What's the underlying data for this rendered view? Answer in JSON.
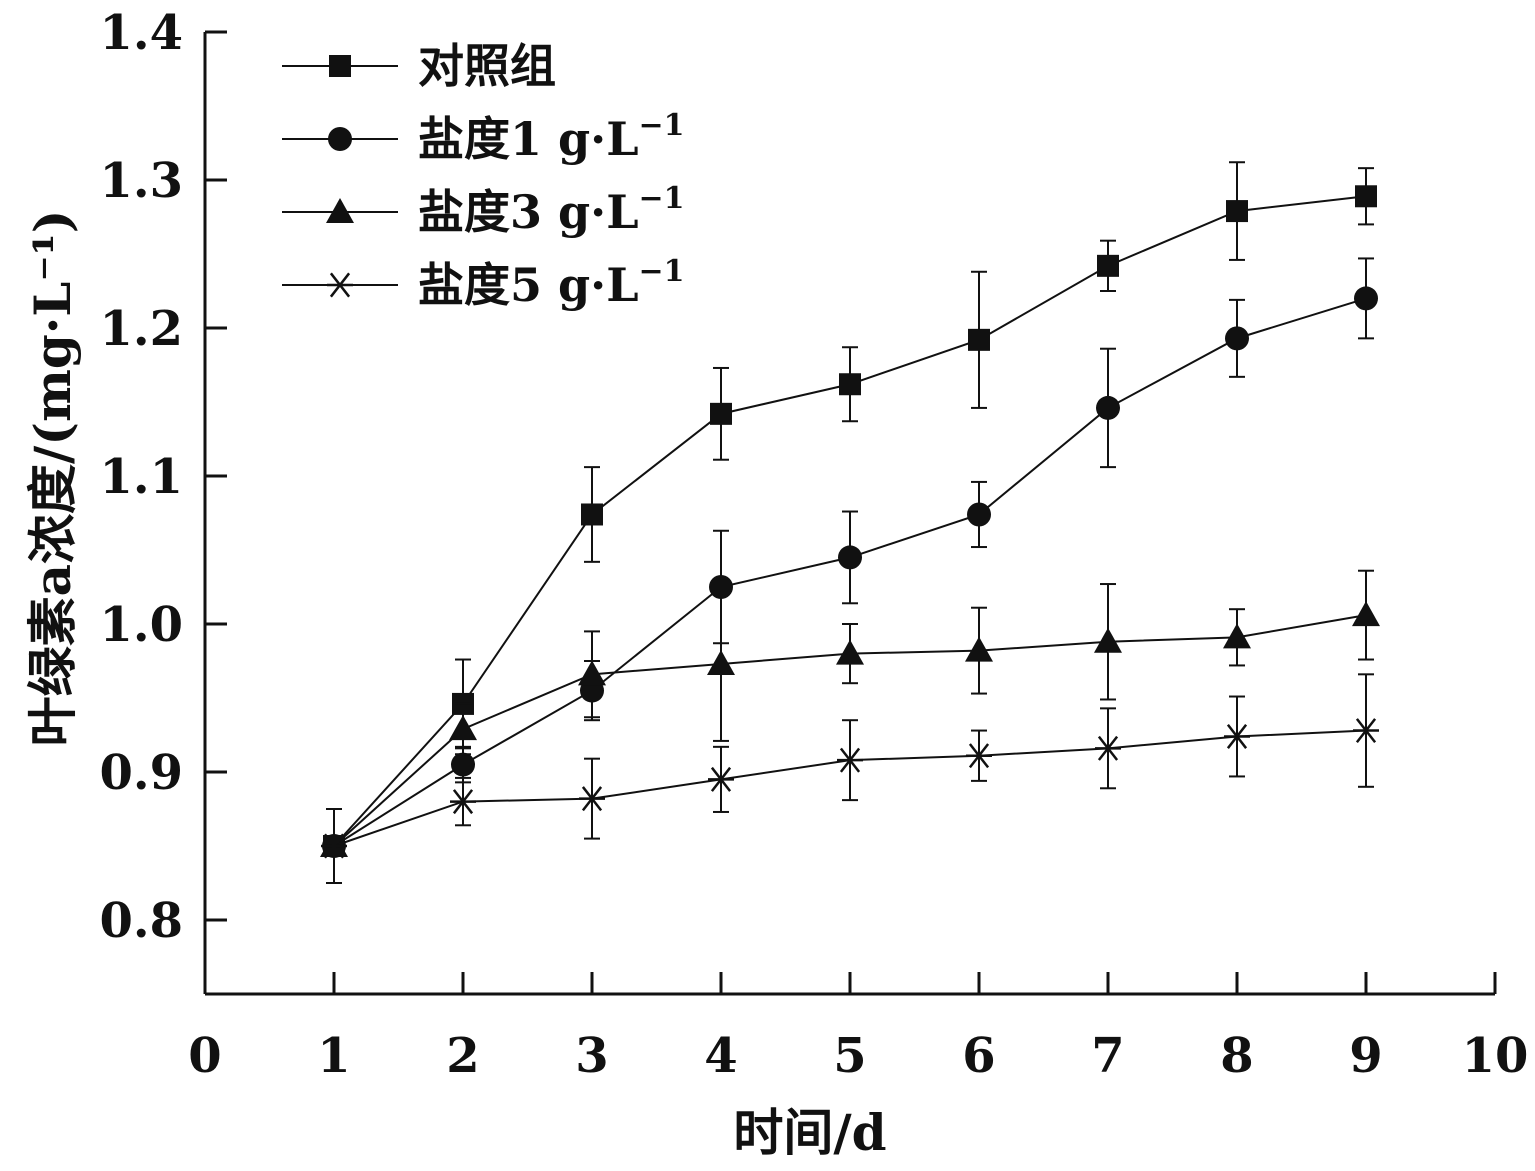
{
  "chart_data": {
    "type": "line",
    "xlabel": "时间/d",
    "ylabel": "叶绿素a浓度/(mg·L⁻¹)",
    "xlim": [
      0,
      10
    ],
    "ylim": [
      0.75,
      1.4
    ],
    "x_ticks": [
      0,
      1,
      2,
      3,
      4,
      5,
      6,
      7,
      8,
      9,
      10
    ],
    "y_ticks": [
      "0.8",
      "0.9",
      "1.0",
      "1.1",
      "1.2",
      "1.3",
      "1.4"
    ],
    "grid": false,
    "legend": "top-left",
    "x": [
      1,
      2,
      3,
      4,
      5,
      6,
      7,
      8,
      9
    ],
    "series": [
      {
        "name": "对照组",
        "name_base": "对照组",
        "name_sup": "",
        "marker": "square",
        "values": [
          0.85,
          0.946,
          1.074,
          1.142,
          1.162,
          1.192,
          1.242,
          1.279,
          1.289
        ],
        "errors": [
          0.025,
          0.03,
          0.032,
          0.031,
          0.025,
          0.046,
          0.017,
          0.033,
          0.019
        ]
      },
      {
        "name": "盐度1 g·L−1",
        "name_base": "盐度1 g·L",
        "name_sup": "−1",
        "marker": "circle",
        "values": [
          0.85,
          0.905,
          0.955,
          1.025,
          1.045,
          1.074,
          1.146,
          1.193,
          1.22
        ],
        "errors": [
          0.025,
          0.012,
          0.02,
          0.038,
          0.031,
          0.022,
          0.04,
          0.026,
          0.027
        ]
      },
      {
        "name": "盐度3 g·L−1",
        "name_base": "盐度3 g·L",
        "name_sup": "−1",
        "marker": "triangle",
        "values": [
          0.85,
          0.929,
          0.966,
          0.973,
          0.98,
          0.982,
          0.988,
          0.991,
          1.006
        ],
        "errors": [
          0.025,
          0.017,
          0.029,
          0.052,
          0.02,
          0.029,
          0.039,
          0.019,
          0.03
        ]
      },
      {
        "name": "盐度5 g·L−1",
        "name_base": "盐度5 g·L",
        "name_sup": "−1",
        "marker": "star",
        "values": [
          0.85,
          0.88,
          0.882,
          0.895,
          0.908,
          0.911,
          0.916,
          0.924,
          0.928
        ],
        "errors": [
          0.025,
          0.016,
          0.027,
          0.022,
          0.027,
          0.017,
          0.027,
          0.027,
          0.038
        ]
      }
    ]
  }
}
